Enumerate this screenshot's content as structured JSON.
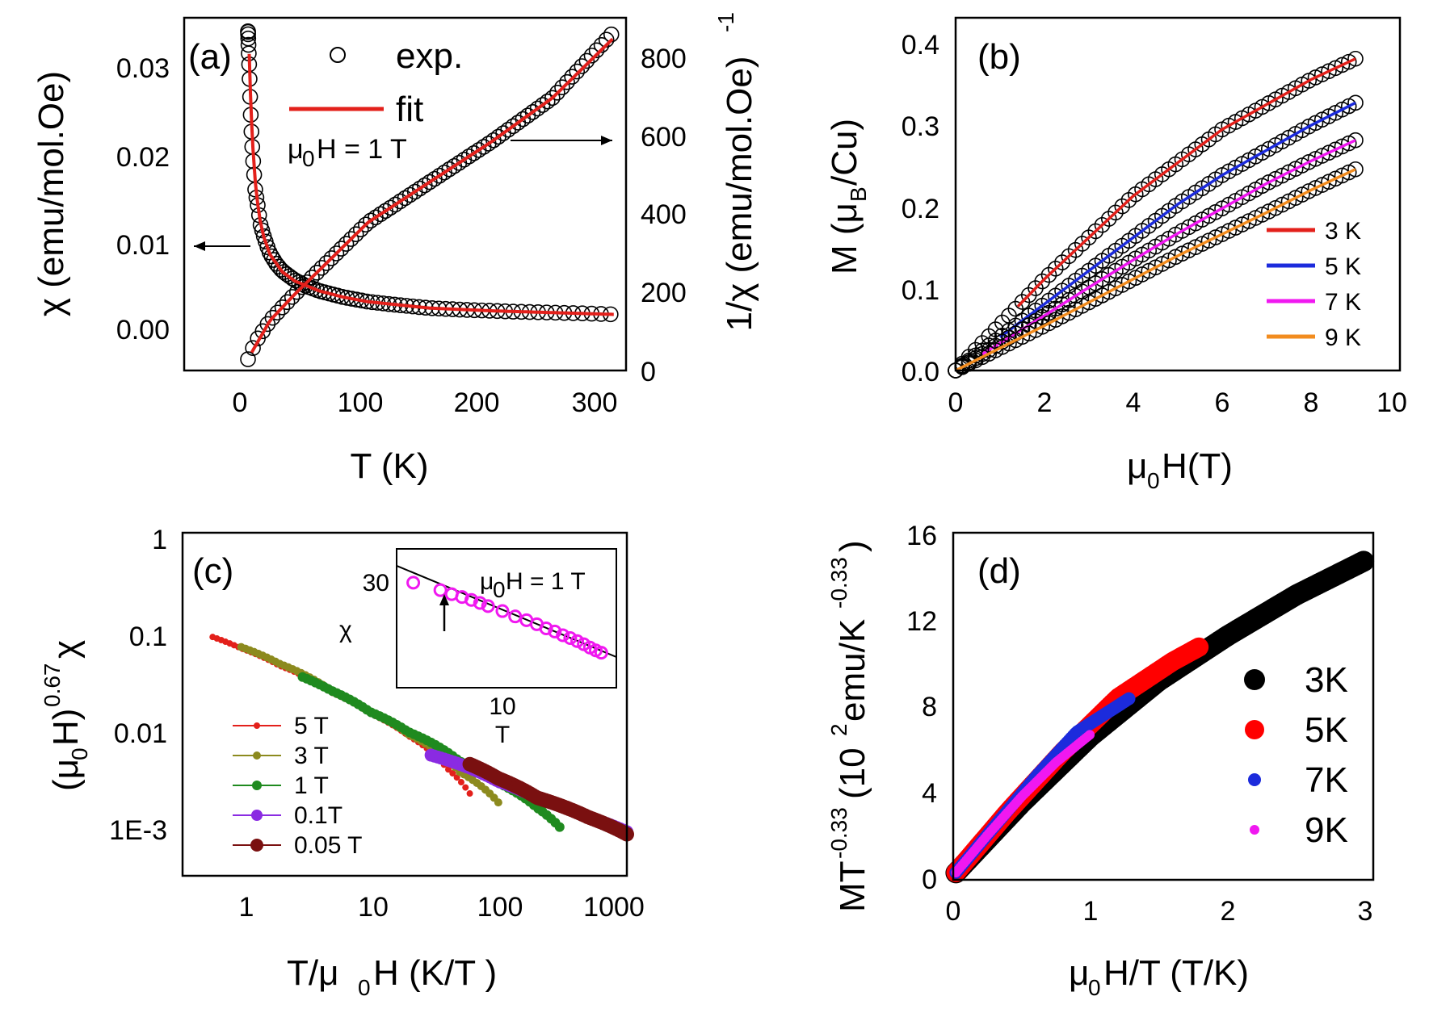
{
  "panels": {
    "a": {
      "label": "(a)",
      "xlabel": "T (K)",
      "ylabel_left": "χ (emu/mol.Oe)",
      "ylabel_right": "1/χ (emu/mol.Oe)",
      "ylabel_right_sup": "-1",
      "xticks": [
        "0",
        "100",
        "200",
        "300"
      ],
      "yticks_left": [
        "0.00",
        "0.01",
        "0.02",
        "0.03"
      ],
      "yticks_right": [
        "0",
        "200",
        "400",
        "600",
        "800"
      ],
      "legend_exp": "exp.",
      "legend_fit": "fit",
      "field_mu": "μ",
      "field_sub": "0",
      "field_rest": "H = 1 T"
    },
    "b": {
      "label": "(b)",
      "xlabel_mu": "μ",
      "xlabel_sub": "0",
      "xlabel_rest": "H(T)",
      "ylabel_pre": "M (μ",
      "ylabel_sub": "B",
      "ylabel_post": "/Cu)",
      "xticks": [
        "0",
        "2",
        "4",
        "6",
        "8",
        "10"
      ],
      "yticks": [
        "0.0",
        "0.1",
        "0.2",
        "0.3",
        "0.4"
      ],
      "legend": [
        "3 K",
        "5 K",
        "7 K",
        "9 K"
      ]
    },
    "c": {
      "label": "(c)",
      "xlabel_pre": "T/μ",
      "xlabel_sub": "0",
      "xlabel_post": "H (K/T )",
      "ylabel_pre": "(μ",
      "ylabel_sub": "0",
      "ylabel_mid": "H)",
      "ylabel_sup": "0.67",
      "ylabel_post": "χ",
      "xticks": [
        "1",
        "10",
        "100",
        "1000"
      ],
      "yticks": [
        "1E-3",
        "0.01",
        "0.1",
        "1"
      ],
      "legend": [
        "5 T",
        "3 T",
        "1 T",
        "0.1T",
        "0.05 T"
      ],
      "inset": {
        "ylabel": "χ",
        "xlabel": "T",
        "ytick": "30",
        "xtick": "10",
        "note_mu": "μ",
        "note_sub": "0",
        "note_rest": "H = 1 T"
      }
    },
    "d": {
      "label": "(d)",
      "xlabel_pre": "μ",
      "xlabel_sub": "0",
      "xlabel_post": "H/T (T/K)",
      "ylabel_pre": "MT",
      "ylabel_sup1": "-0.33",
      "ylabel_mid": " (10",
      "ylabel_sup2": "2",
      "ylabel_post": "emu/K",
      "ylabel_sup3": "-0.33",
      "ylabel_end": ")",
      "xticks": [
        "0",
        "1",
        "2",
        "3"
      ],
      "yticks": [
        "0",
        "4",
        "8",
        "12",
        "16"
      ],
      "legend": [
        "3K",
        "5K",
        "7K",
        "9K"
      ]
    }
  },
  "colors": {
    "fit": "#e3201b",
    "k3": "#e3201b",
    "k5": "#1c2bdc",
    "k7": "#f018f0",
    "k9": "#f28c1f",
    "c5T": "#e3201b",
    "c3T": "#8c8a1e",
    "c1T": "#1f8a1f",
    "c01T": "#8a2be2",
    "c005T": "#7a1010",
    "d3K": "#000000",
    "d5K": "#ff0000",
    "d7K": "#1c2bdc",
    "d9K": "#f018f0"
  },
  "chart_data": [
    {
      "panel": "a",
      "type": "scatter",
      "title": "",
      "xlim": [
        -50,
        310
      ],
      "ylim_left": [
        -0.005,
        0.034
      ],
      "ylim_right": [
        0,
        880
      ],
      "series": [
        {
          "name": "chi exp.",
          "axis": "left",
          "marker": "open-circle",
          "x": [
            2,
            3,
            4,
            5,
            6,
            8,
            10,
            12,
            15,
            18,
            20,
            25,
            30,
            40,
            50,
            60,
            80,
            100,
            120,
            150,
            180,
            200,
            220,
            250,
            280,
            300
          ],
          "y": [
            0.0325,
            0.0285,
            0.024,
            0.0208,
            0.0185,
            0.0148,
            0.0132,
            0.0112,
            0.0098,
            0.0086,
            0.0079,
            0.0068,
            0.006,
            0.005,
            0.0043,
            0.0038,
            0.0031,
            0.0026,
            0.0023,
            0.0019,
            0.0017,
            0.0016,
            0.0015,
            0.0014,
            0.0013,
            0.0012
          ]
        },
        {
          "name": "1/chi exp.",
          "axis": "right",
          "marker": "open-circle",
          "x": [
            2,
            5,
            10,
            20,
            40,
            60,
            80,
            100,
            150,
            200,
            250,
            300
          ],
          "y": [
            28,
            50,
            80,
            125,
            190,
            250,
            310,
            370,
            470,
            570,
            680,
            845
          ]
        },
        {
          "name": "chi fit",
          "axis": "left",
          "line": true,
          "x": [
            3,
            4,
            5,
            6,
            8,
            10,
            12,
            15,
            20,
            30,
            40,
            60,
            80,
            100,
            150,
            200,
            250,
            300
          ],
          "y": [
            0.03,
            0.0255,
            0.0222,
            0.0196,
            0.0158,
            0.0133,
            0.0115,
            0.0097,
            0.0078,
            0.0059,
            0.0049,
            0.0038,
            0.0031,
            0.0026,
            0.0019,
            0.0016,
            0.0014,
            0.0012
          ]
        },
        {
          "name": "1/chi fit",
          "axis": "right",
          "line": true,
          "x": [
            5,
            20,
            40,
            60,
            80,
            100,
            150,
            200,
            250,
            300
          ],
          "y": [
            45,
            125,
            190,
            250,
            310,
            370,
            470,
            570,
            680,
            830
          ]
        }
      ]
    },
    {
      "panel": "b",
      "type": "scatter",
      "xlim": [
        0,
        10
      ],
      "ylim": [
        0,
        0.4
      ],
      "series": [
        {
          "name": "3 K",
          "x": [
            0,
            1,
            2,
            3,
            4,
            5,
            6,
            7,
            8,
            9
          ],
          "y": [
            0,
            0.055,
            0.11,
            0.16,
            0.21,
            0.25,
            0.29,
            0.32,
            0.35,
            0.375
          ]
        },
        {
          "name": "5 K",
          "x": [
            0,
            1,
            2,
            3,
            4,
            5,
            6,
            7,
            8,
            9
          ],
          "y": [
            0,
            0.04,
            0.08,
            0.12,
            0.16,
            0.2,
            0.235,
            0.265,
            0.295,
            0.322
          ]
        },
        {
          "name": "7 K",
          "x": [
            0,
            1,
            2,
            3,
            4,
            5,
            6,
            7,
            8,
            9
          ],
          "y": [
            0,
            0.033,
            0.066,
            0.1,
            0.133,
            0.165,
            0.195,
            0.225,
            0.252,
            0.277
          ]
        },
        {
          "name": "9 K",
          "x": [
            0,
            1,
            2,
            3,
            4,
            5,
            6,
            7,
            8,
            9
          ],
          "y": [
            0,
            0.027,
            0.054,
            0.082,
            0.11,
            0.138,
            0.164,
            0.19,
            0.217,
            0.242
          ]
        }
      ]
    },
    {
      "panel": "c",
      "type": "scatter",
      "xscale": "log",
      "yscale": "log",
      "xlim": [
        0.3,
        1000
      ],
      "ylim": [
        0.0003,
        1
      ],
      "series": [
        {
          "name": "5 T",
          "x": [
            0.6,
            1,
            2,
            5,
            10,
            20,
            40,
            60
          ],
          "y": [
            0.085,
            0.065,
            0.043,
            0.023,
            0.014,
            0.0082,
            0.0038,
            0.0021
          ]
        },
        {
          "name": "3 T",
          "x": [
            1,
            2,
            5,
            10,
            20,
            50,
            100
          ],
          "y": [
            0.067,
            0.045,
            0.024,
            0.0145,
            0.0085,
            0.0035,
            0.0017
          ]
        },
        {
          "name": "1 T",
          "x": [
            3,
            5,
            10,
            20,
            50,
            100,
            200,
            300
          ],
          "y": [
            0.033,
            0.024,
            0.0145,
            0.009,
            0.0045,
            0.0027,
            0.0015,
            0.00095
          ]
        },
        {
          "name": "0.1T",
          "x": [
            30,
            50,
            100,
            200,
            500,
            1000
          ],
          "y": [
            0.0052,
            0.0042,
            0.0028,
            0.0019,
            0.0012,
            0.00085
          ]
        },
        {
          "name": "0.05 T",
          "x": [
            60,
            100,
            200,
            500,
            1000
          ],
          "y": [
            0.0042,
            0.003,
            0.0019,
            0.0012,
            0.0008
          ]
        }
      ],
      "inset": {
        "type": "scatter",
        "xscale": "log",
        "yscale": "log",
        "xlim": [
          3,
          23
        ],
        "ylim": [
          8,
          50
        ],
        "series": [
          {
            "name": "data",
            "x": [
              3.5,
              4.5,
              5,
              5.5,
              6,
              6.5,
              7,
              8,
              9,
              10,
              11,
              12,
              13,
              14,
              15,
              16,
              17,
              18,
              19,
              20
            ],
            "y": [
              32,
              29,
              27.5,
              26.5,
              25.5,
              24.5,
              23.5,
              22,
              20.5,
              19.5,
              18.5,
              17.5,
              16.8,
              16,
              15.4,
              14.8,
              14.2,
              13.6,
              13.1,
              12.7
            ]
          },
          {
            "name": "fit line",
            "x": [
              3,
              23
            ],
            "y": [
              40,
              12
            ]
          }
        ]
      }
    },
    {
      "panel": "d",
      "type": "scatter",
      "xlim": [
        0,
        3.2
      ],
      "ylim": [
        0,
        16
      ],
      "series": [
        {
          "name": "3K",
          "x": [
            0,
            0.5,
            1,
            1.5,
            2,
            2.5,
            3
          ],
          "y": [
            0,
            3.4,
            6.5,
            9.1,
            11.2,
            13.1,
            14.7
          ]
        },
        {
          "name": "5K",
          "x": [
            0,
            0.4,
            0.8,
            1.2,
            1.6,
            1.8
          ],
          "y": [
            0,
            3.0,
            5.8,
            8.3,
            10.0,
            10.7
          ]
        },
        {
          "name": "7K",
          "x": [
            0,
            0.3,
            0.6,
            0.9,
            1.29
          ],
          "y": [
            0,
            2.3,
            4.6,
            6.7,
            8.3
          ]
        },
        {
          "name": "9K",
          "x": [
            0,
            0.25,
            0.5,
            0.75,
            1.0
          ],
          "y": [
            0,
            1.9,
            3.7,
            5.3,
            6.6
          ]
        }
      ]
    }
  ]
}
